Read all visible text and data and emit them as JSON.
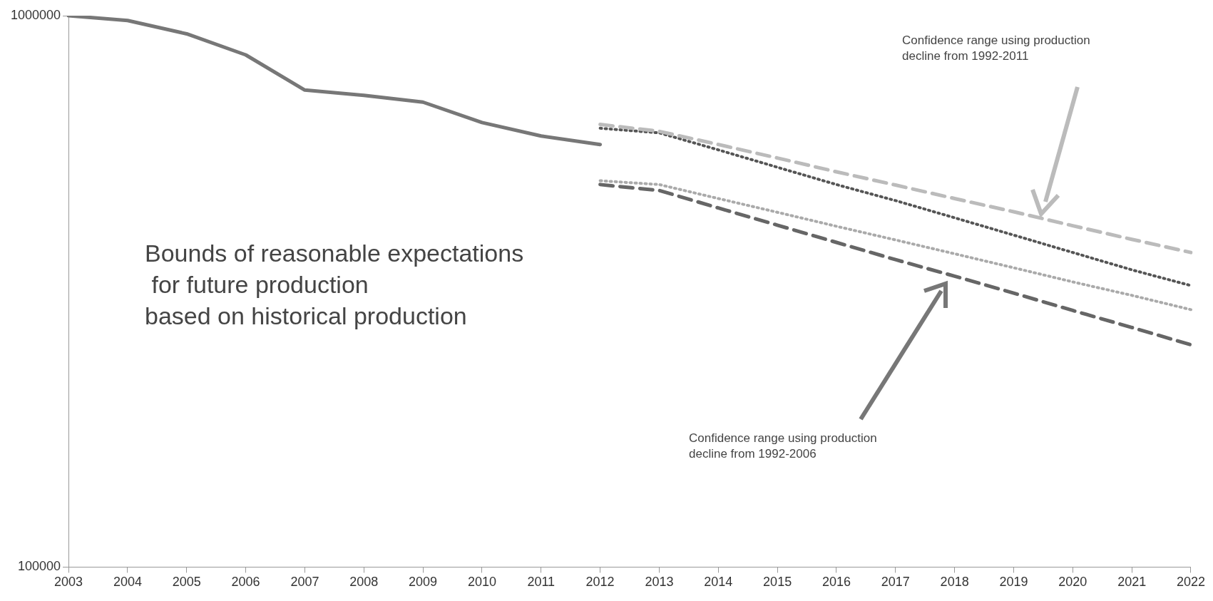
{
  "chart_data": {
    "type": "line",
    "categories": [
      "2003",
      "2004",
      "2005",
      "2006",
      "2007",
      "2008",
      "2009",
      "2010",
      "2011",
      "2012",
      "2013",
      "2014",
      "2015",
      "2016",
      "2017",
      "2018",
      "2019",
      "2020",
      "2021",
      "2022"
    ],
    "series": [
      {
        "color": "#777777",
        "line_style": "solid",
        "values": [
          1000000,
          980000,
          927000,
          849000,
          733000,
          717000,
          697000,
          640000,
          605000,
          584000,
          null,
          null,
          null,
          null,
          null,
          null,
          null,
          null,
          null,
          null
        ]
      },
      {
        "color": "#bbbbbb",
        "line_style": "dashed",
        "values": [
          null,
          null,
          null,
          null,
          null,
          null,
          null,
          null,
          null,
          635000,
          617000,
          584000,
          552000,
          521000,
          493000,
          466000,
          441000,
          416000,
          393000,
          372000
        ]
      },
      {
        "color": "#555555",
        "line_style": "dotted",
        "values": [
          null,
          null,
          null,
          null,
          null,
          null,
          null,
          null,
          null,
          625000,
          613000,
          571000,
          531000,
          494000,
          462000,
          430000,
          400000,
          372000,
          346000,
          324000
        ]
      },
      {
        "color": "#aaaaaa",
        "line_style": "dotted",
        "values": [
          null,
          null,
          null,
          null,
          null,
          null,
          null,
          null,
          null,
          502000,
          494000,
          466000,
          440000,
          415000,
          392000,
          370000,
          349000,
          329000,
          311000,
          293000
        ]
      },
      {
        "color": "#666666",
        "line_style": "dashed",
        "values": [
          null,
          null,
          null,
          null,
          null,
          null,
          null,
          null,
          null,
          494000,
          482000,
          448000,
          417000,
          388000,
          361000,
          337000,
          314000,
          292000,
          272000,
          253000
        ]
      }
    ],
    "log": "y",
    "ylim": [
      100000,
      1000000
    ],
    "yticks": [
      100000,
      1000000
    ],
    "grid": false,
    "legend": false,
    "marker": "none",
    "annotations": [
      "Confidence range using production\ndecline from 1992-2011",
      "Confidence range using production\ndecline from 1992-2006",
      "Bounds of reasonable expectations\n for future production\nbased on historical production"
    ]
  }
}
